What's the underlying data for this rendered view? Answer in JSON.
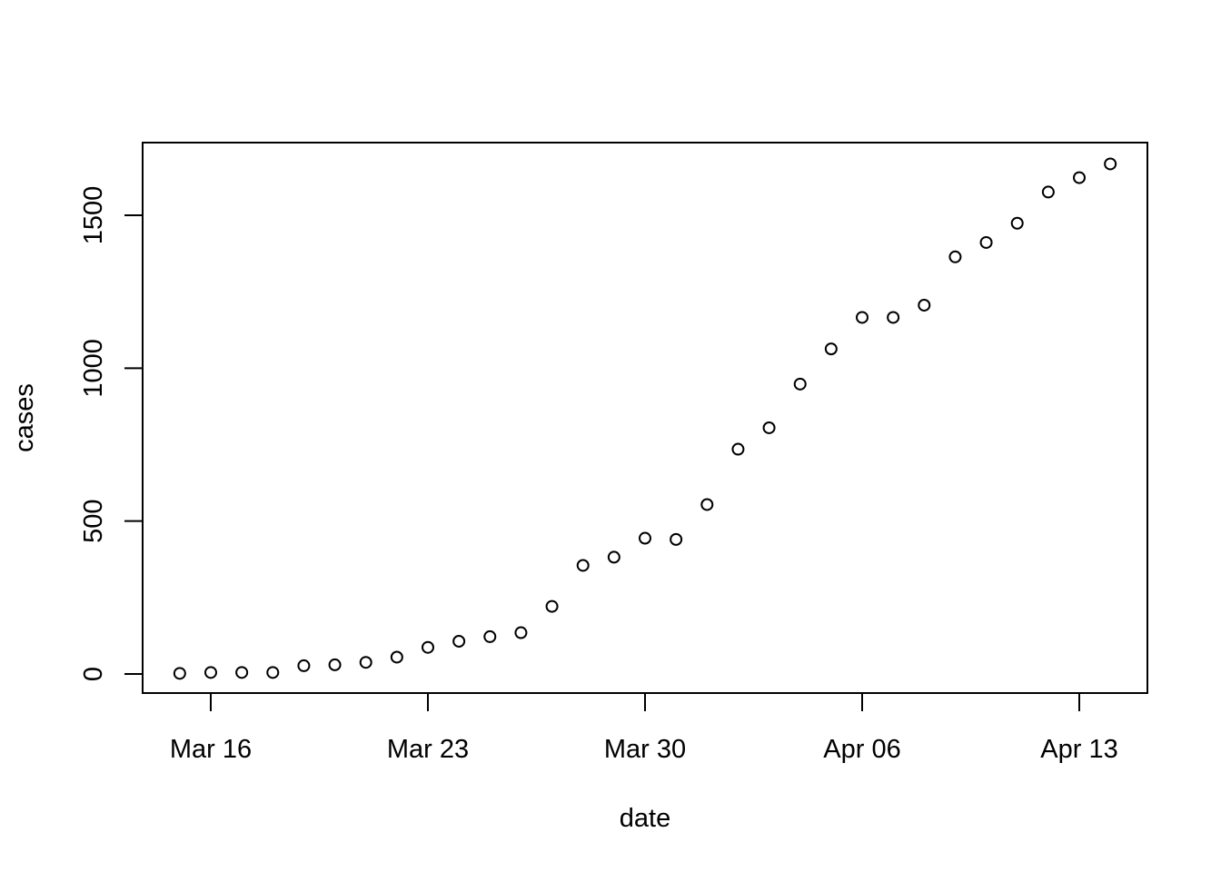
{
  "chart_data": {
    "type": "scatter",
    "title": "",
    "xlabel": "date",
    "ylabel": "cases",
    "x_tick_labels": [
      "Mar 16",
      "Mar 23",
      "Mar 30",
      "Apr 06",
      "Apr 13"
    ],
    "y_tick_labels": [
      "0",
      "500",
      "1000",
      "1500"
    ],
    "y_ticks": [
      0,
      500,
      1000,
      1500
    ],
    "x_ticks": [
      "2020-03-16",
      "2020-03-23",
      "2020-03-30",
      "2020-04-06",
      "2020-04-13"
    ],
    "xlim": [
      "2020-03-13",
      "2020-04-15"
    ],
    "ylim": [
      -60,
      1740
    ],
    "grid": false,
    "marker": "open-circle",
    "points": [
      {
        "x": "2020-03-15",
        "y": 2
      },
      {
        "x": "2020-03-16",
        "y": 5
      },
      {
        "x": "2020-03-17",
        "y": 5
      },
      {
        "x": "2020-03-18",
        "y": 5
      },
      {
        "x": "2020-03-19",
        "y": 27
      },
      {
        "x": "2020-03-20",
        "y": 30
      },
      {
        "x": "2020-03-21",
        "y": 38
      },
      {
        "x": "2020-03-22",
        "y": 55
      },
      {
        "x": "2020-03-23",
        "y": 87
      },
      {
        "x": "2020-03-24",
        "y": 107
      },
      {
        "x": "2020-03-25",
        "y": 122
      },
      {
        "x": "2020-03-26",
        "y": 135
      },
      {
        "x": "2020-03-27",
        "y": 221
      },
      {
        "x": "2020-03-28",
        "y": 355
      },
      {
        "x": "2020-03-29",
        "y": 382
      },
      {
        "x": "2020-03-30",
        "y": 444
      },
      {
        "x": "2020-03-31",
        "y": 440
      },
      {
        "x": "2020-04-01",
        "y": 554
      },
      {
        "x": "2020-04-02",
        "y": 735
      },
      {
        "x": "2020-04-03",
        "y": 805
      },
      {
        "x": "2020-04-04",
        "y": 948
      },
      {
        "x": "2020-04-05",
        "y": 1063
      },
      {
        "x": "2020-04-06",
        "y": 1166
      },
      {
        "x": "2020-04-07",
        "y": 1166
      },
      {
        "x": "2020-04-08",
        "y": 1206
      },
      {
        "x": "2020-04-09",
        "y": 1364
      },
      {
        "x": "2020-04-10",
        "y": 1411
      },
      {
        "x": "2020-04-11",
        "y": 1474
      },
      {
        "x": "2020-04-12",
        "y": 1576
      },
      {
        "x": "2020-04-13",
        "y": 1623
      },
      {
        "x": "2020-04-14",
        "y": 1668
      }
    ]
  }
}
